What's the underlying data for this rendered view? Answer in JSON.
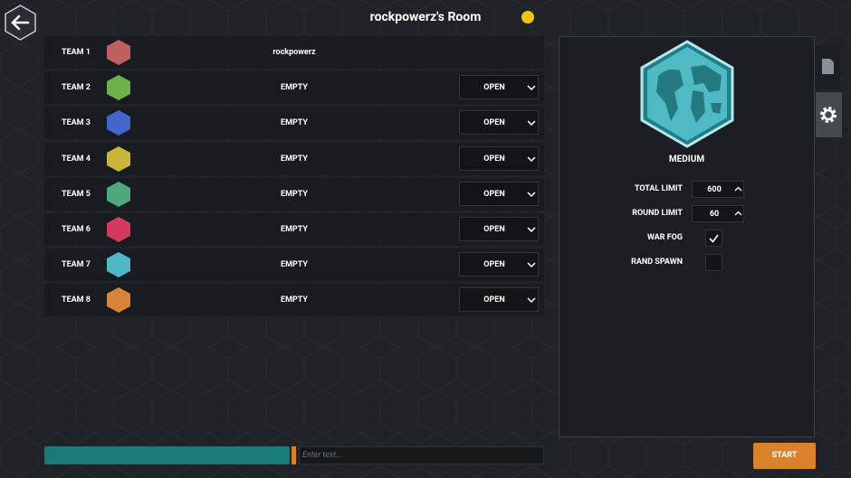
{
  "header": {
    "title": "rockpowerz's Room"
  },
  "teams": [
    {
      "label": "TEAM 1",
      "color": "#c0605e",
      "player": "rockpowerz"
    },
    {
      "label": "TEAM 2",
      "color": "#6cb04a",
      "player": "EMPTY",
      "slot": "OPEN"
    },
    {
      "label": "TEAM 3",
      "color": "#4466cc",
      "player": "EMPTY",
      "slot": "OPEN"
    },
    {
      "label": "TEAM 4",
      "color": "#c9b63a",
      "player": "EMPTY",
      "slot": "OPEN"
    },
    {
      "label": "TEAM 5",
      "color": "#4fa87c",
      "player": "EMPTY",
      "slot": "OPEN"
    },
    {
      "label": "TEAM 6",
      "color": "#d23a5e",
      "player": "EMPTY",
      "slot": "OPEN"
    },
    {
      "label": "TEAM 7",
      "color": "#4fb8c6",
      "player": "EMPTY",
      "slot": "OPEN"
    },
    {
      "label": "TEAM 8",
      "color": "#d9823a",
      "player": "EMPTY",
      "slot": "OPEN"
    }
  ],
  "settings": {
    "map_size": "MEDIUM",
    "fields": [
      {
        "label": "TOTAL LIMIT",
        "value": 600
      },
      {
        "label": "ROUND LIMIT",
        "value": 60
      }
    ],
    "toggles": [
      {
        "label": "WAR FOG",
        "checked": true
      },
      {
        "label": "RAND SPAWN",
        "checked": false
      }
    ]
  },
  "chat": {
    "placeholder": "Enter text..."
  },
  "start_button": "START"
}
